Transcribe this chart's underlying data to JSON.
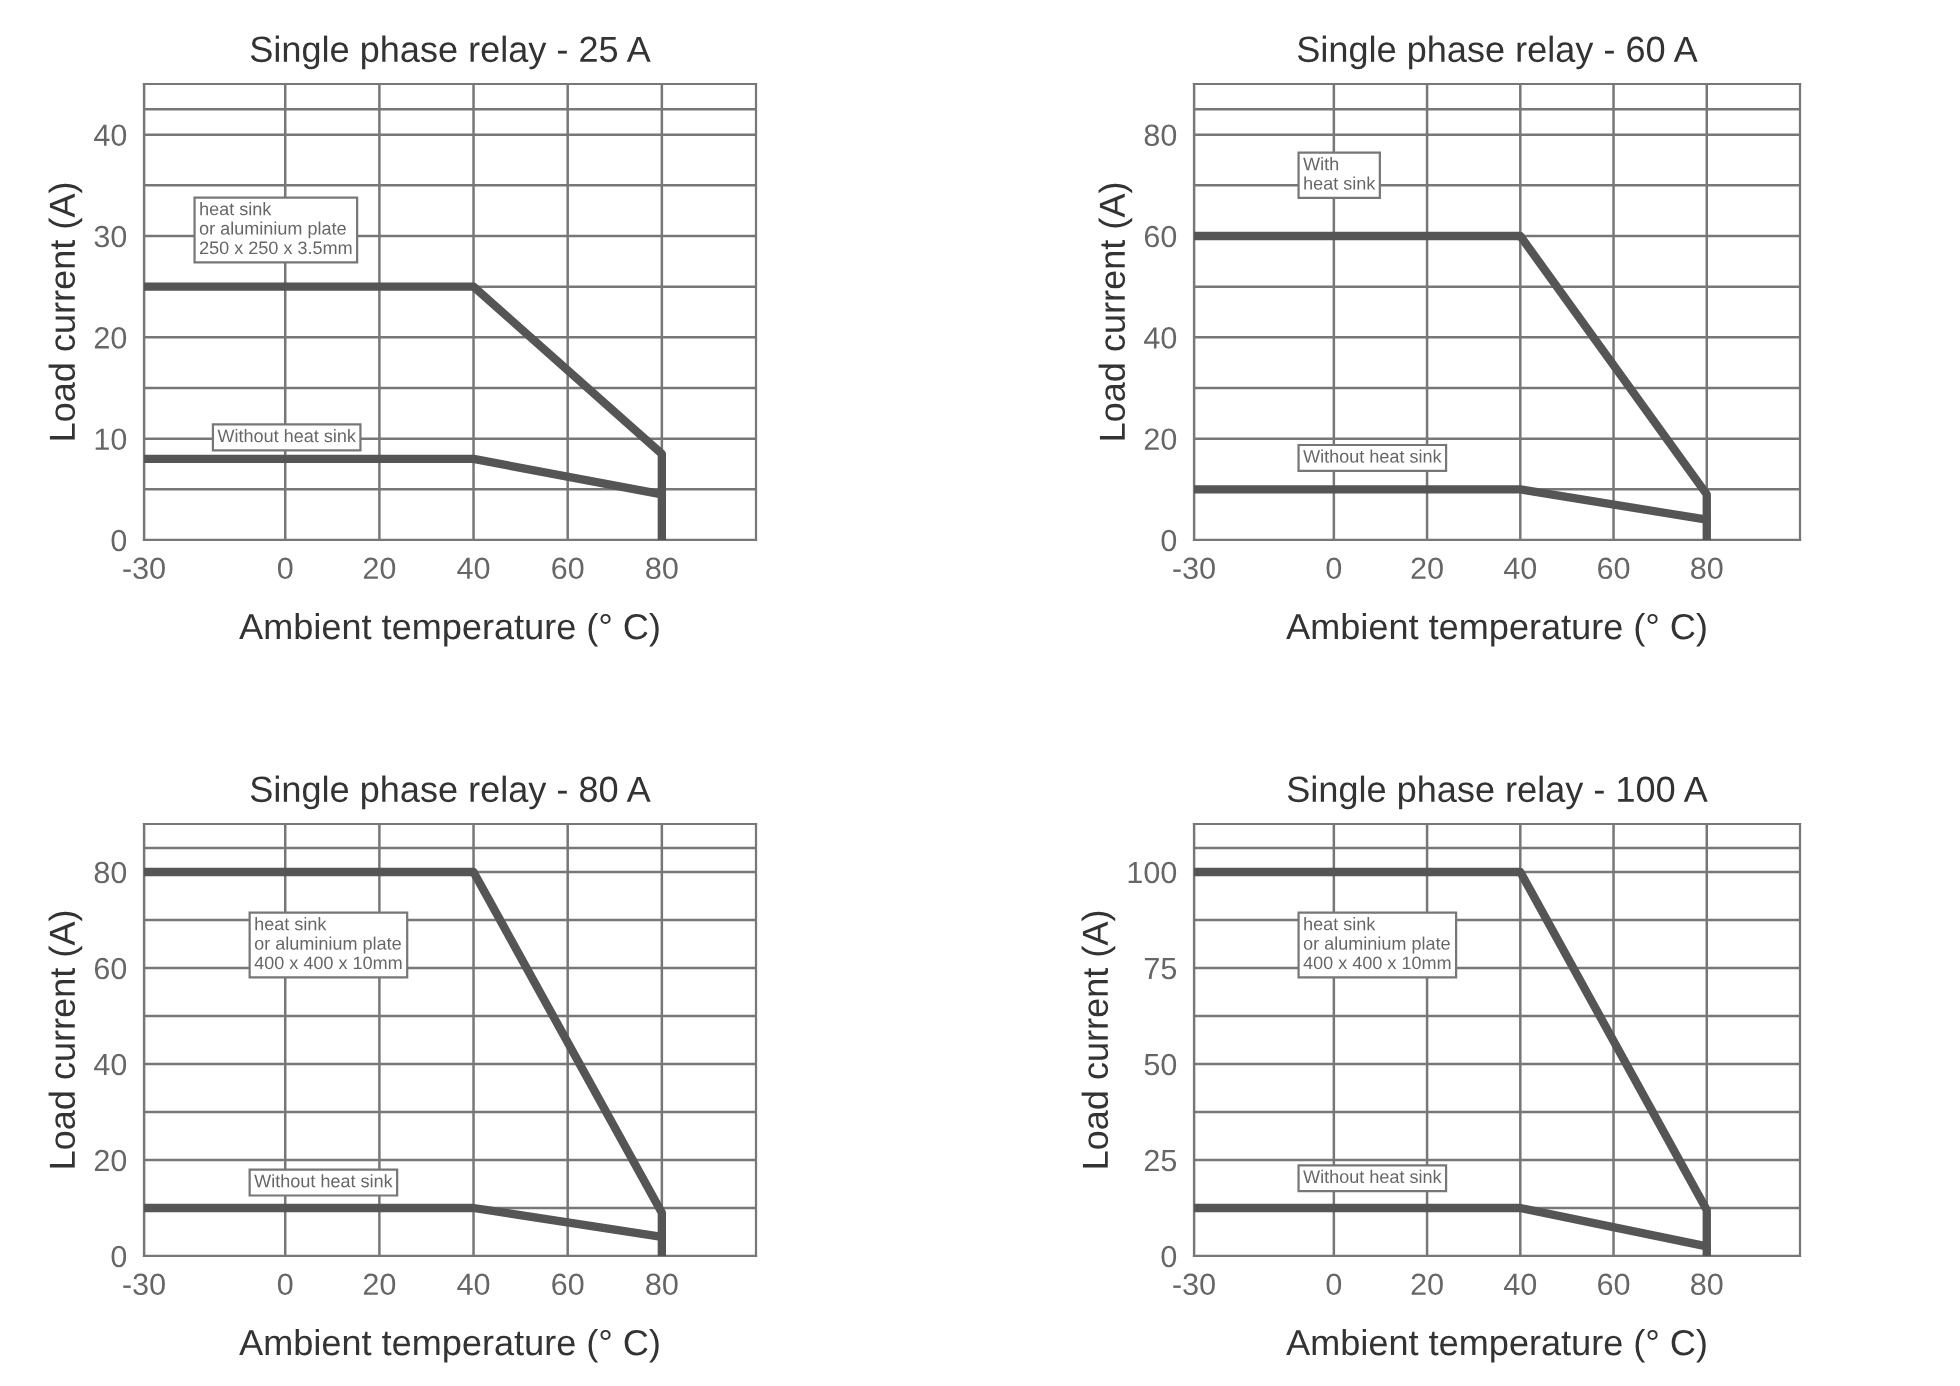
{
  "chart_data": [
    {
      "type": "line",
      "title": "Single phase relay - 25 A",
      "xlabel": "Ambient temperature (° C)",
      "ylabel": "Load current (A)",
      "xlim": [
        -30,
        100
      ],
      "ylim": [
        0,
        45
      ],
      "xticks": [
        -30,
        0,
        20,
        40,
        60,
        80
      ],
      "yticks": [
        0,
        10,
        20,
        30,
        40
      ],
      "grid": true,
      "series": [
        {
          "color": "#555555",
          "x": [
            -30,
            40,
            80,
            80
          ],
          "values": [
            25,
            25,
            8.5,
            0
          ]
        },
        {
          "color": "#555555",
          "x": [
            -30,
            40,
            80
          ],
          "values": [
            8,
            8,
            4.5
          ]
        }
      ],
      "annotations": [
        "heat sink\nor aluminium plate\n250 x 250 x 3.5mm",
        "Without heat sink"
      ]
    },
    {
      "type": "line",
      "title": "Single phase relay - 60 A",
      "xlabel": "Ambient temperature (° C)",
      "ylabel": "Load current (A)",
      "xlim": [
        -30,
        100
      ],
      "ylim": [
        0,
        90
      ],
      "xticks": [
        -30,
        0,
        20,
        40,
        60,
        80
      ],
      "yticks": [
        0,
        20,
        40,
        60,
        80
      ],
      "grid": true,
      "series": [
        {
          "color": "#555555",
          "x": [
            -30,
            40,
            80,
            80
          ],
          "values": [
            60,
            60,
            9,
            0
          ]
        },
        {
          "color": "#555555",
          "x": [
            -30,
            40,
            80
          ],
          "values": [
            10,
            10,
            4
          ]
        }
      ],
      "annotations": [
        "With\nheat sink",
        "Without heat sink"
      ]
    },
    {
      "type": "line",
      "title": "Single phase relay - 80 A",
      "xlabel": "Ambient temperature (° C)",
      "ylabel": "Load current (A)",
      "xlim": [
        -30,
        100
      ],
      "ylim": [
        0,
        90
      ],
      "xticks": [
        -30,
        0,
        20,
        40,
        60,
        80
      ],
      "yticks": [
        0,
        20,
        40,
        60,
        80
      ],
      "grid": true,
      "series": [
        {
          "color": "#555555",
          "x": [
            -30,
            40,
            80,
            80
          ],
          "values": [
            80,
            80,
            9,
            0
          ]
        },
        {
          "color": "#555555",
          "x": [
            -30,
            40,
            80
          ],
          "values": [
            10,
            10,
            4
          ]
        }
      ],
      "annotations": [
        "heat sink\nor aluminium plate\n400 x 400 x 10mm",
        "Without heat sink"
      ]
    },
    {
      "type": "line",
      "title": "Single phase relay - 100 A",
      "xlabel": "Ambient temperature (° C)",
      "ylabel": "Load current (A)",
      "xlim": [
        -30,
        100
      ],
      "ylim": [
        0,
        112.5
      ],
      "xticks": [
        -30,
        0,
        20,
        40,
        60,
        80
      ],
      "yticks": [
        0,
        25,
        50,
        75,
        100
      ],
      "grid": true,
      "series": [
        {
          "color": "#555555",
          "x": [
            -30,
            40,
            80,
            80
          ],
          "values": [
            100,
            100,
            12,
            0
          ]
        },
        {
          "color": "#555555",
          "x": [
            -30,
            40,
            80
          ],
          "values": [
            12.5,
            12.5,
            2.5
          ]
        }
      ],
      "annotations": [
        "heat sink\nor aluminium plate\n400 x 400 x 10mm",
        "Without heat sink"
      ]
    }
  ]
}
